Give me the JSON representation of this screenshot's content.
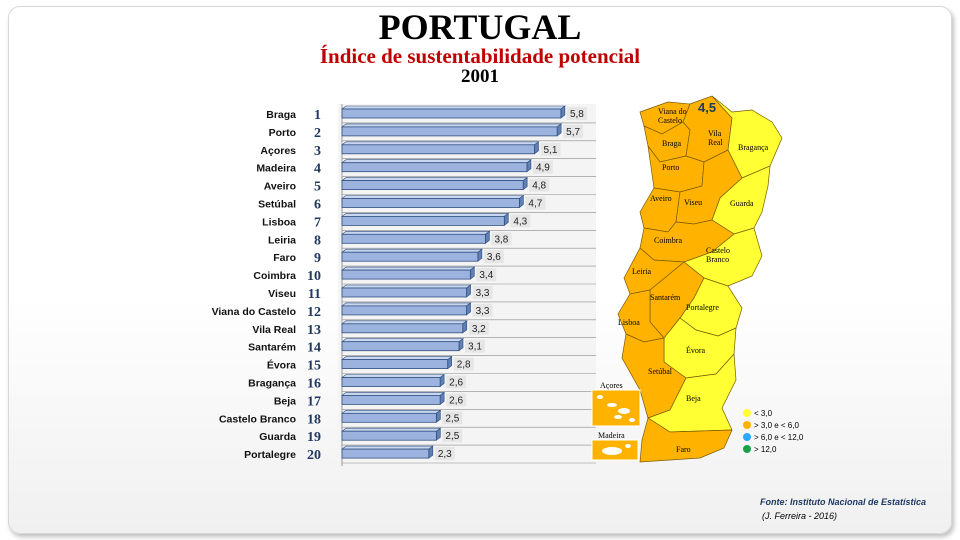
{
  "header": {
    "title": "PORTUGAL",
    "subtitle": "Índice de sustentabilidade potencial",
    "year": "2001"
  },
  "chart_data": {
    "type": "bar",
    "orientation": "horizontal",
    "categories": [
      "Braga",
      "Porto",
      "Açores",
      "Madeira",
      "Aveiro",
      "Setúbal",
      "Lisboa",
      "Leiria",
      "Faro",
      "Coimbra",
      "Viseu",
      "Viana do Castelo",
      "Vila Real",
      "Santarém",
      "Évora",
      "Bragança",
      "Beja",
      "Castelo Branco",
      "Guarda",
      "Portalegre"
    ],
    "ranks": [
      "1",
      "2",
      "3",
      "4",
      "5",
      "6",
      "7",
      "8",
      "9",
      "10",
      "11",
      "12",
      "13",
      "14",
      "15",
      "16",
      "17",
      "18",
      "19",
      "20"
    ],
    "values": [
      5.8,
      5.7,
      5.1,
      4.9,
      4.8,
      4.7,
      4.3,
      3.8,
      3.6,
      3.4,
      3.3,
      3.3,
      3.2,
      3.1,
      2.8,
      2.6,
      2.6,
      2.5,
      2.5,
      2.3
    ],
    "value_labels": [
      "5,8",
      "5,7",
      "5,1",
      "4,9",
      "4,8",
      "4,7",
      "4,3",
      "3,8",
      "3,6",
      "3,4",
      "3,3",
      "3,3",
      "3,2",
      "3,1",
      "2,8",
      "2,6",
      "2,6",
      "2,5",
      "2,5",
      "2,3"
    ],
    "xlim": [
      0,
      6.2
    ],
    "bar_color": "#9db3df",
    "bar_border": "#2f4f7f",
    "rank_color": "#1f3864",
    "grid": true
  },
  "map": {
    "national_value": "4,5",
    "colors": {
      "low": "#ffff33",
      "mid": "#ffb300",
      "high": "#29a8ff",
      "top": "#1aa04a"
    },
    "districts": [
      {
        "name": "Viana do Castelo",
        "lines": [
          "Viana do",
          "Castelo"
        ],
        "class": "mid"
      },
      {
        "name": "Braga",
        "lines": [
          "Braga"
        ],
        "class": "mid"
      },
      {
        "name": "Vila Real",
        "lines": [
          "Vila",
          "Real"
        ],
        "class": "mid"
      },
      {
        "name": "Bragança",
        "lines": [
          "Bragança"
        ],
        "class": "low"
      },
      {
        "name": "Porto",
        "lines": [
          "Porto"
        ],
        "class": "mid"
      },
      {
        "name": "Aveiro",
        "lines": [
          "Aveiro"
        ],
        "class": "mid"
      },
      {
        "name": "Viseu",
        "lines": [
          "Viseu"
        ],
        "class": "mid"
      },
      {
        "name": "Guarda",
        "lines": [
          "Guarda"
        ],
        "class": "low"
      },
      {
        "name": "Coimbra",
        "lines": [
          "Coimbra"
        ],
        "class": "mid"
      },
      {
        "name": "Castelo Branco",
        "lines": [
          "Castelo",
          "Branco"
        ],
        "class": "low"
      },
      {
        "name": "Leiria",
        "lines": [
          "Leiria"
        ],
        "class": "mid"
      },
      {
        "name": "Santarém",
        "lines": [
          "Santarém"
        ],
        "class": "mid"
      },
      {
        "name": "Portalegre",
        "lines": [
          "Portalegre"
        ],
        "class": "low"
      },
      {
        "name": "Lisboa",
        "lines": [
          "Lisboa"
        ],
        "class": "mid"
      },
      {
        "name": "Évora",
        "lines": [
          "Évora"
        ],
        "class": "low"
      },
      {
        "name": "Setúbal",
        "lines": [
          "Setúbal"
        ],
        "class": "mid"
      },
      {
        "name": "Beja",
        "lines": [
          "Beja"
        ],
        "class": "low"
      },
      {
        "name": "Faro",
        "lines": [
          "Faro"
        ],
        "class": "mid"
      }
    ],
    "insets": [
      {
        "name": "Açores",
        "class": "mid"
      },
      {
        "name": "Madeira",
        "class": "mid"
      }
    ],
    "legend": [
      {
        "label": "< 3,0",
        "class": "low"
      },
      {
        "label": "> 3,0  e < 6,0",
        "class": "mid"
      },
      {
        "label": "> 6,0  e < 12,0",
        "class": "high"
      },
      {
        "label": "> 12,0",
        "class": "top"
      }
    ]
  },
  "footer": {
    "source": "Fonte: Instituto Nacional de Estatística",
    "author": "(J. Ferreira - 2016)"
  }
}
